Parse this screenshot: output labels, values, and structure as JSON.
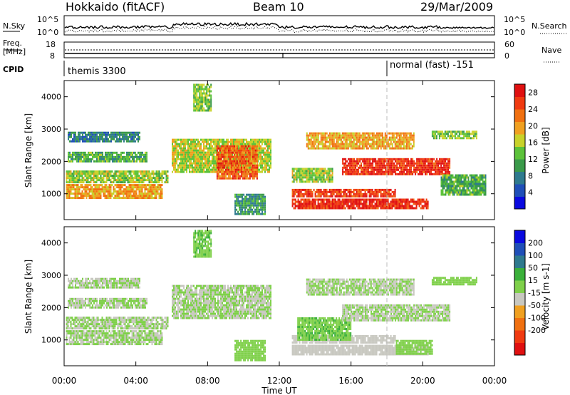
{
  "header": {
    "station": "Hokkaido (fitACF)",
    "beam": "Beam 10",
    "date": "29/Mar/2009"
  },
  "top_strip": {
    "left_label": "N.Sky",
    "right_label": "N.Search",
    "left_ticks": [
      "10^5",
      "10^0"
    ],
    "right_ticks": [
      "10^5",
      "10^0"
    ]
  },
  "freq_strip": {
    "left_label_1": "Freq.",
    "left_label_2": "[MHz]",
    "right_label": "Nave",
    "left_ticks": [
      "18",
      "8"
    ],
    "right_ticks": [
      "60",
      "0"
    ]
  },
  "cpid_strip": {
    "label": "CPID",
    "mode_1": "themis 3300",
    "mode_2": "normal (fast) -151",
    "mode_2_start_hour": 18.0
  },
  "x_axis": {
    "title": "Time UT",
    "ticks": [
      "00:00",
      "04:00",
      "08:00",
      "12:00",
      "16:00",
      "20:00",
      "00:00"
    ],
    "range_hours": [
      0,
      24
    ]
  },
  "chart_data": [
    {
      "type": "heatmap",
      "quantity": "Power",
      "ylabel": "Slant Range [km]",
      "yticks": [
        "1000",
        "2000",
        "3000",
        "4000"
      ],
      "ylim": [
        200,
        4500
      ],
      "colorbar_label": "Power [dB]",
      "colorbar_ticks": [
        "4",
        "8",
        "12",
        "16",
        "20",
        "24",
        "28"
      ],
      "colorbar_range": [
        0,
        30
      ],
      "colors": [
        "#0a0ae0",
        "#1f4fb8",
        "#2e7a8e",
        "#3a9a4a",
        "#5cc23a",
        "#c8d22a",
        "#f0a020",
        "#f07010",
        "#f03a10",
        "#e01010"
      ],
      "regions": [
        {
          "x": [
            0.1,
            5.8
          ],
          "y": [
            1380,
            1720
          ],
          "value": 15
        },
        {
          "x": [
            0.1,
            5.5
          ],
          "y": [
            850,
            1300
          ],
          "value": 20
        },
        {
          "x": [
            0.2,
            4.6
          ],
          "y": [
            2000,
            2300
          ],
          "value": 12
        },
        {
          "x": [
            0.2,
            4.2
          ],
          "y": [
            2650,
            2920
          ],
          "value": 8
        },
        {
          "x": [
            6.0,
            11.5
          ],
          "y": [
            1700,
            2700
          ],
          "value": 16
        },
        {
          "x": [
            8.5,
            10.8
          ],
          "y": [
            1500,
            2500
          ],
          "value": 24
        },
        {
          "x": [
            7.2,
            8.2
          ],
          "y": [
            3600,
            4400
          ],
          "value": 14
        },
        {
          "x": [
            9.5,
            11.2
          ],
          "y": [
            400,
            1000
          ],
          "value": 10
        },
        {
          "x": [
            12.7,
            18.5
          ],
          "y": [
            900,
            1150
          ],
          "value": 26
        },
        {
          "x": [
            12.7,
            20.3
          ],
          "y": [
            550,
            850
          ],
          "value": 27
        },
        {
          "x": [
            12.7,
            15.0
          ],
          "y": [
            1400,
            1800
          ],
          "value": 15
        },
        {
          "x": [
            13.5,
            19.5
          ],
          "y": [
            2400,
            2900
          ],
          "value": 20
        },
        {
          "x": [
            15.5,
            21.5
          ],
          "y": [
            1600,
            2100
          ],
          "value": 27
        },
        {
          "x": [
            21.0,
            23.5
          ],
          "y": [
            1000,
            1600
          ],
          "value": 12
        },
        {
          "x": [
            20.5,
            23.0
          ],
          "y": [
            2700,
            2950
          ],
          "value": 14
        }
      ]
    },
    {
      "type": "heatmap",
      "quantity": "Velocity",
      "ylabel": "Slant Range [km]",
      "yticks": [
        "1000",
        "2000",
        "3000",
        "4000"
      ],
      "ylim": [
        200,
        4500
      ],
      "colorbar_label": "Velocity [m s-1]",
      "colorbar_ticks": [
        "200",
        "100",
        "50",
        "15",
        "-15",
        "-50",
        "-100",
        "-200"
      ],
      "colorbar_range": [
        -250,
        250
      ],
      "colors": [
        "#0a0ae0",
        "#1f4fb8",
        "#2e7a8e",
        "#3ab03a",
        "#7fd04a",
        "#c8c8c0",
        "#f0a020",
        "#f07010",
        "#f03a10",
        "#e01010"
      ],
      "regions": [
        {
          "x": [
            0.1,
            5.8
          ],
          "y": [
            1380,
            1720
          ],
          "value": 0
        },
        {
          "x": [
            0.1,
            5.5
          ],
          "y": [
            850,
            1300
          ],
          "value": 0
        },
        {
          "x": [
            0.2,
            4.6
          ],
          "y": [
            2000,
            2300
          ],
          "value": 0
        },
        {
          "x": [
            0.2,
            4.2
          ],
          "y": [
            2650,
            2920
          ],
          "value": 0
        },
        {
          "x": [
            6.0,
            11.5
          ],
          "y": [
            1700,
            2700
          ],
          "value": 0
        },
        {
          "x": [
            7.2,
            8.2
          ],
          "y": [
            3600,
            4400
          ],
          "value": 45
        },
        {
          "x": [
            9.5,
            11.2
          ],
          "y": [
            400,
            1000
          ],
          "value": 30
        },
        {
          "x": [
            12.7,
            18.5
          ],
          "y": [
            900,
            1150
          ],
          "value": -40
        },
        {
          "x": [
            12.7,
            20.3
          ],
          "y": [
            550,
            850
          ],
          "value": -40
        },
        {
          "x": [
            13.0,
            16.0
          ],
          "y": [
            1000,
            1700
          ],
          "value": 45
        },
        {
          "x": [
            13.5,
            19.5
          ],
          "y": [
            2400,
            2900
          ],
          "value": 0
        },
        {
          "x": [
            15.5,
            21.5
          ],
          "y": [
            1600,
            2100
          ],
          "value": 0
        },
        {
          "x": [
            18.5,
            20.5
          ],
          "y": [
            600,
            1000
          ],
          "value": 40
        },
        {
          "x": [
            20.5,
            23.0
          ],
          "y": [
            2700,
            2950
          ],
          "value": 40
        }
      ]
    }
  ]
}
